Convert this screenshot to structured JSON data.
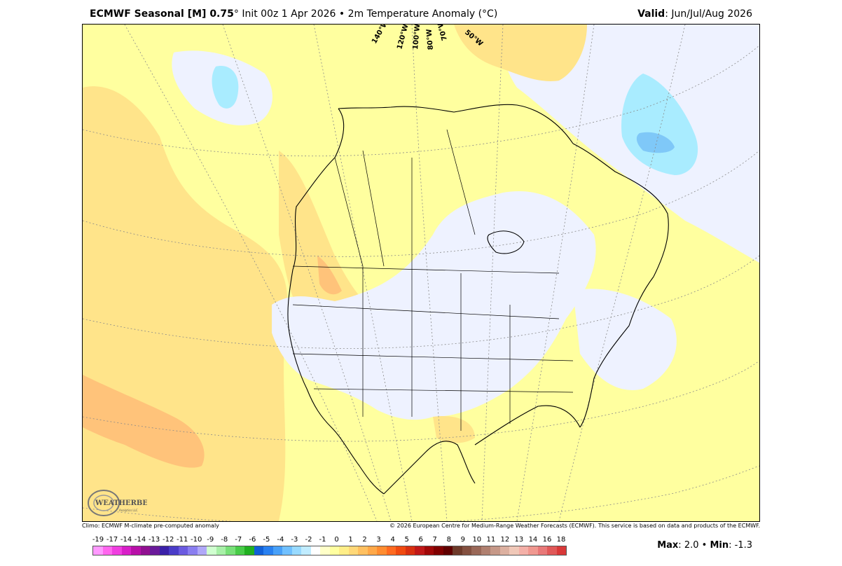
{
  "header": {
    "model": "ECMWF Seasonal [M] 0.75",
    "degree_symbol": "°",
    "init_text": "Init 00z 1 Apr 2026",
    "bullet": "•",
    "variable": "2m Temperature Anomaly (°C)",
    "valid_label": "Valid",
    "valid_value": ": Jun/Jul/Aug 2026"
  },
  "map": {
    "longitude_labels": [
      "140°W",
      "120°W",
      "100°W",
      "80°W",
      "70°W",
      "50°W"
    ],
    "colors": {
      "background_anomaly": "#ffff9f",
      "warm_light": "#ffe48a",
      "warm_mid": "#ffc37a",
      "warm_strong": "#ffa86a",
      "near_zero": "#eef2ff",
      "cool_light": "#a9ecff",
      "cool_mid": "#7fc8f8",
      "cool_strong": "#6fa8f0",
      "coastline": "#000000"
    },
    "logo_text": "WEATHERBELL",
    "logo_subtext": "Analytics LLC"
  },
  "footer": {
    "left": "Climo: ECMWF M-climate pre-computed anomaly",
    "right": "© 2026 European Centre for Medium-Range Weather Forecasts (ECMWF). This service is based on data and products of the ECMWF."
  },
  "legend": {
    "labels": [
      "-19",
      "-17",
      "-14",
      "-14",
      "-13",
      "-12",
      "-11",
      "-10",
      "-9",
      "-8",
      "-7",
      "-6",
      "-5",
      "-4",
      "-3",
      "-2",
      "-1",
      "0",
      "1",
      "2",
      "3",
      "4",
      "5",
      "6",
      "7",
      "8",
      "9",
      "10",
      "11",
      "12",
      "13",
      "14",
      "16",
      "18"
    ],
    "colors": [
      "#ff99ff",
      "#ff66ee",
      "#f03ee0",
      "#d81fc8",
      "#b810a8",
      "#901090",
      "#6a1a9a",
      "#3a20a8",
      "#4a3cc8",
      "#6a5ae0",
      "#8a7ef0",
      "#b0a8f8",
      "#d0ffd0",
      "#a8f0a8",
      "#78e078",
      "#48cc48",
      "#20b020",
      "#1060d8",
      "#2880f0",
      "#48a0f8",
      "#70c0ff",
      "#98daff",
      "#c0ecff",
      "#ffffff",
      "#ffffc8",
      "#ffffa0",
      "#ffee88",
      "#ffd878",
      "#ffc060",
      "#ffa848",
      "#ff8c30",
      "#ff6a20",
      "#f04a10",
      "#d83010",
      "#c01818",
      "#a00808",
      "#800000",
      "#600000",
      "#6e3a2a",
      "#845040",
      "#9a6858",
      "#b08070",
      "#c69888",
      "#dcb0a0",
      "#f0c8b8",
      "#f4b0a8",
      "#f09890",
      "#e87878",
      "#e05858",
      "#d83838"
    ]
  },
  "stats": {
    "max_label": "Max",
    "max_value": "2.0",
    "bullet": "•",
    "min_label": "Min",
    "min_value": "-1.3"
  }
}
